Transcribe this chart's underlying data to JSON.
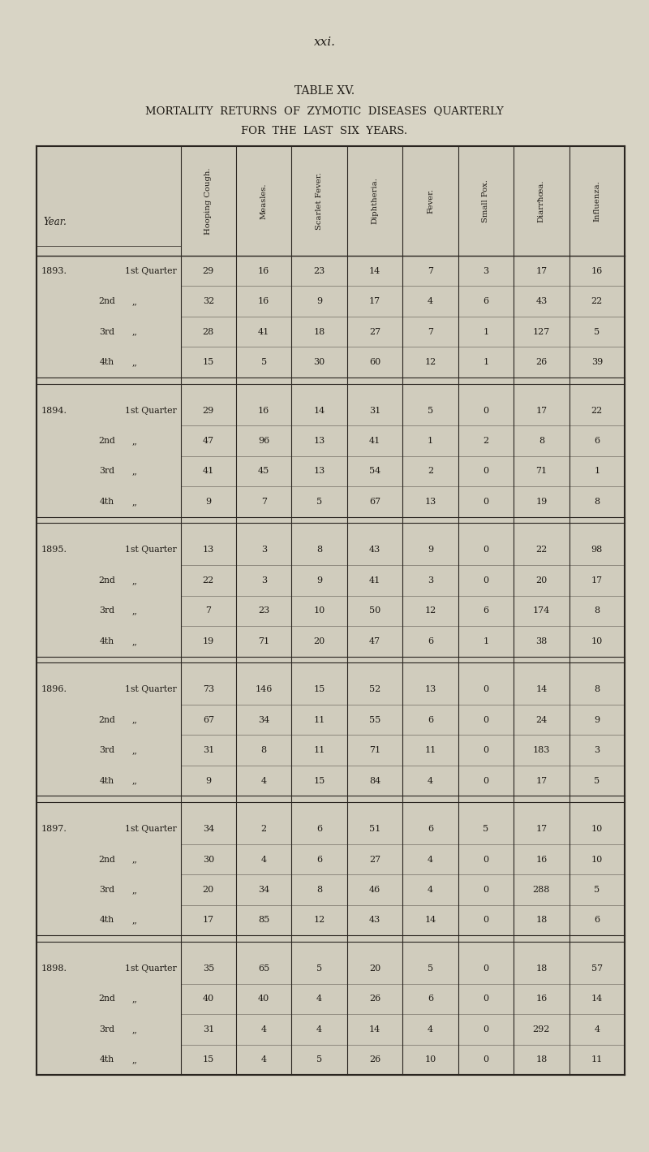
{
  "page_number": "xxi.",
  "title_line1": "TABLE XV.",
  "title_line2": "MORTALITY  RETURNS  OF  ZYMOTIC  DISEASES  QUARTERLY",
  "title_line3": "FOR  THE  LAST  SIX  YEARS.",
  "col_headers": [
    "Hooping Cough.",
    "Measles.",
    "Scarlet Fever.",
    "Diphtheria.",
    "Fever.",
    "Small Pox.",
    "Diarrħœa.",
    "Influenza."
  ],
  "year_col_header": "Year.",
  "years": [
    {
      "year": "1893.",
      "quarters": [
        {
          "label": "1st Quarter",
          "values": [
            29,
            16,
            23,
            14,
            7,
            3,
            17,
            16
          ]
        },
        {
          "label": "2nd",
          "values": [
            32,
            16,
            9,
            17,
            4,
            6,
            43,
            22
          ]
        },
        {
          "label": "3rd",
          "values": [
            28,
            41,
            18,
            27,
            7,
            1,
            127,
            5
          ]
        },
        {
          "label": "4th",
          "values": [
            15,
            5,
            30,
            60,
            12,
            1,
            26,
            39
          ]
        }
      ]
    },
    {
      "year": "1894.",
      "quarters": [
        {
          "label": "1st Quarter",
          "values": [
            29,
            16,
            14,
            31,
            5,
            0,
            17,
            22
          ]
        },
        {
          "label": "2nd",
          "values": [
            47,
            96,
            13,
            41,
            1,
            2,
            8,
            6
          ]
        },
        {
          "label": "3rd",
          "values": [
            41,
            45,
            13,
            54,
            2,
            0,
            71,
            1
          ]
        },
        {
          "label": "4th",
          "values": [
            9,
            7,
            5,
            67,
            13,
            0,
            19,
            8
          ]
        }
      ]
    },
    {
      "year": "1895.",
      "quarters": [
        {
          "label": "1st Quarter",
          "values": [
            13,
            3,
            8,
            43,
            9,
            0,
            22,
            98
          ]
        },
        {
          "label": "2nd",
          "values": [
            22,
            3,
            9,
            41,
            3,
            0,
            20,
            17
          ]
        },
        {
          "label": "3rd",
          "values": [
            7,
            23,
            10,
            50,
            12,
            6,
            174,
            8
          ]
        },
        {
          "label": "4th",
          "values": [
            19,
            71,
            20,
            47,
            6,
            1,
            38,
            10
          ]
        }
      ]
    },
    {
      "year": "1896.",
      "quarters": [
        {
          "label": "1st Quarter",
          "values": [
            73,
            146,
            15,
            52,
            13,
            0,
            14,
            8
          ]
        },
        {
          "label": "2nd",
          "values": [
            67,
            34,
            11,
            55,
            6,
            0,
            24,
            9
          ]
        },
        {
          "label": "3rd",
          "values": [
            31,
            8,
            11,
            71,
            11,
            0,
            183,
            3
          ]
        },
        {
          "label": "4th",
          "values": [
            9,
            4,
            15,
            84,
            4,
            0,
            17,
            5
          ]
        }
      ]
    },
    {
      "year": "1897.",
      "quarters": [
        {
          "label": "1st Quarter",
          "values": [
            34,
            2,
            6,
            51,
            6,
            5,
            17,
            10
          ]
        },
        {
          "label": "2nd",
          "values": [
            30,
            4,
            6,
            27,
            4,
            0,
            16,
            10
          ]
        },
        {
          "label": "3rd",
          "values": [
            20,
            34,
            8,
            46,
            4,
            0,
            288,
            5
          ]
        },
        {
          "label": "4th",
          "values": [
            17,
            85,
            12,
            43,
            14,
            0,
            18,
            6
          ]
        }
      ]
    },
    {
      "year": "1898.",
      "quarters": [
        {
          "label": "1st Quarter",
          "values": [
            35,
            65,
            5,
            20,
            5,
            0,
            18,
            57
          ]
        },
        {
          "label": "2nd",
          "values": [
            40,
            40,
            4,
            26,
            6,
            0,
            16,
            14
          ]
        },
        {
          "label": "3rd",
          "values": [
            31,
            4,
            4,
            14,
            4,
            0,
            292,
            4
          ]
        },
        {
          "label": "4th",
          "values": [
            15,
            4,
            5,
            26,
            10,
            0,
            18,
            11
          ]
        }
      ]
    }
  ],
  "bg_color": "#ccc9bc",
  "page_bg": "#d8d4c5",
  "text_color": "#1e1a15",
  "table_bg": "#d0ccbd",
  "line_color": "#2a2520"
}
